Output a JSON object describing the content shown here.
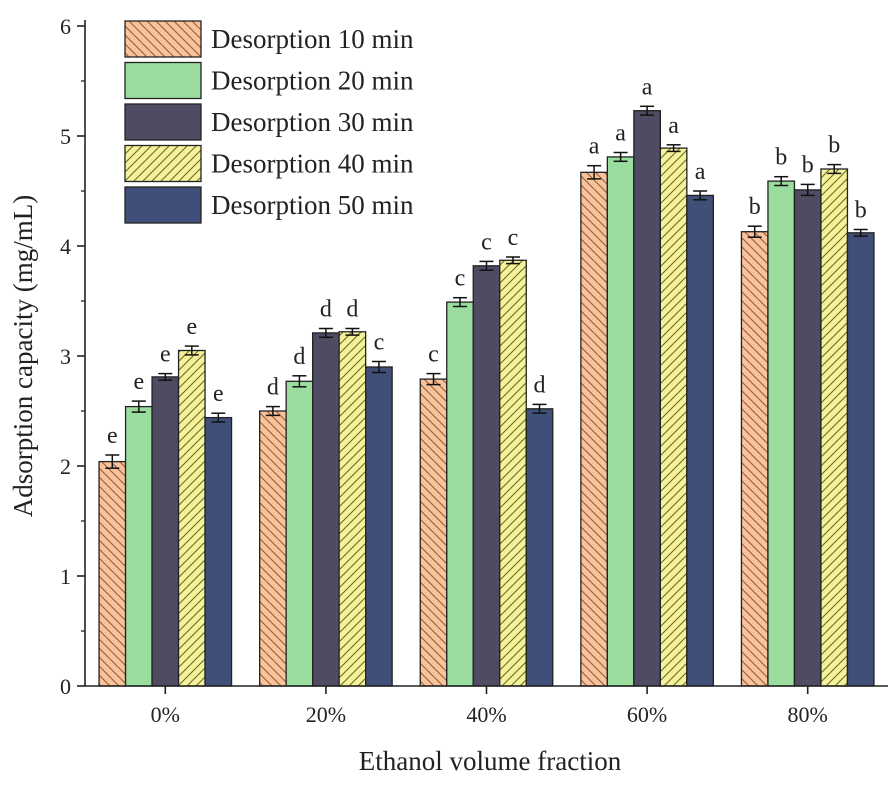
{
  "chart_data": {
    "type": "bar",
    "xlabel": "Ethanol volume fraction",
    "ylabel": "Adsorption capacity (mg/mL)",
    "categories": [
      "0%",
      "20%",
      "40%",
      "60%",
      "80%"
    ],
    "ylim": [
      0,
      6
    ],
    "yticks": [
      "0",
      "1",
      "2",
      "3",
      "4",
      "5",
      "6"
    ],
    "grid": false,
    "legend_position": "top-left",
    "series": [
      {
        "name": "Desorption 10 min",
        "color": "#f7c39a",
        "pattern": "hatch-backslash",
        "values": [
          2.04,
          2.5,
          2.79,
          4.67,
          4.13
        ],
        "errors": [
          0.06,
          0.04,
          0.05,
          0.06,
          0.05
        ],
        "labels": [
          "e",
          "d",
          "c",
          "a",
          "b"
        ]
      },
      {
        "name": "Desorption 20 min",
        "color": "#9bdd9f",
        "pattern": "solid",
        "values": [
          2.54,
          2.77,
          3.49,
          4.81,
          4.59
        ],
        "errors": [
          0.05,
          0.05,
          0.04,
          0.04,
          0.04
        ],
        "labels": [
          "e",
          "d",
          "c",
          "a",
          "b"
        ]
      },
      {
        "name": "Desorption 30 min",
        "color": "#4f4b63",
        "pattern": "solid",
        "values": [
          2.81,
          3.21,
          3.82,
          5.23,
          4.51
        ],
        "errors": [
          0.03,
          0.04,
          0.04,
          0.04,
          0.05
        ],
        "labels": [
          "e",
          "d",
          "c",
          "a",
          "b"
        ]
      },
      {
        "name": "Desorption 40 min",
        "color": "#f6f29a",
        "pattern": "hatch-slash",
        "values": [
          3.05,
          3.22,
          3.87,
          4.89,
          4.7
        ],
        "errors": [
          0.04,
          0.03,
          0.03,
          0.03,
          0.04
        ],
        "labels": [
          "e",
          "d",
          "c",
          "a",
          "b"
        ]
      },
      {
        "name": "Desorption 50 min",
        "color": "#3f4f78",
        "pattern": "solid",
        "values": [
          2.44,
          2.9,
          2.52,
          4.46,
          4.12
        ],
        "errors": [
          0.04,
          0.05,
          0.04,
          0.04,
          0.03
        ],
        "labels": [
          "e",
          "c",
          "d",
          "a",
          "b"
        ]
      }
    ]
  }
}
